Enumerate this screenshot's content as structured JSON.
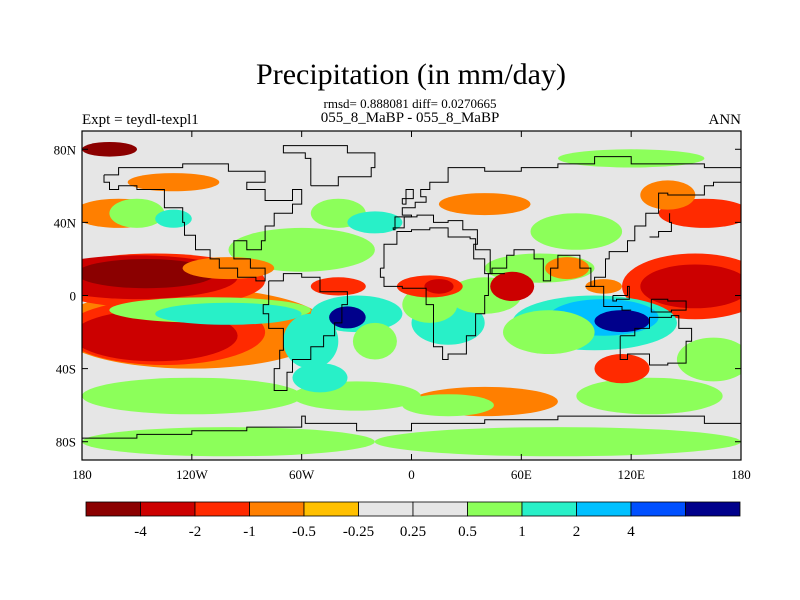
{
  "chart_data": {
    "type": "heatmap",
    "title": "Precipitation (in mm/day)",
    "stats_line": "rmsd= 0.888081 diff= 0.0270665",
    "subtitle": "055_8_MaBP - 055_8_MaBP",
    "left_label": "Expt = teydl-texpl1",
    "right_label": "ANN",
    "xlim": [
      -180,
      180
    ],
    "ylim": [
      -90,
      90
    ],
    "x_ticks": [
      {
        "value": -180,
        "label": "180"
      },
      {
        "value": -120,
        "label": "120W"
      },
      {
        "value": -60,
        "label": "60W"
      },
      {
        "value": 0,
        "label": "0"
      },
      {
        "value": 60,
        "label": "60E"
      },
      {
        "value": 120,
        "label": "120E"
      },
      {
        "value": 180,
        "label": "180"
      }
    ],
    "y_ticks": [
      {
        "value": 80,
        "label": "80N"
      },
      {
        "value": 40,
        "label": "40N"
      },
      {
        "value": 0,
        "label": "0"
      },
      {
        "value": -40,
        "label": "40S"
      },
      {
        "value": -80,
        "label": "80S"
      }
    ],
    "colorbar": {
      "colors": [
        "#8b0000",
        "#cc0000",
        "#ff2a00",
        "#ff7f00",
        "#ffc000",
        "#e6e6e6",
        "#e6e6e6",
        "#8cff5a",
        "#28f0c8",
        "#00c0ff",
        "#0050ff",
        "#00008b"
      ],
      "labels": [
        "-4",
        "-2",
        "-1",
        "-0.5",
        "-0.25",
        "0.25",
        "0.5",
        "1",
        "2",
        "4"
      ]
    },
    "anomaly_regions": [
      {
        "lon": -145,
        "lat": 12,
        "rx": 38,
        "ry": 8,
        "level": -4
      },
      {
        "lon": -150,
        "lat": 10,
        "rx": 55,
        "ry": 12,
        "level": -2
      },
      {
        "lon": -140,
        "lat": 8,
        "rx": 60,
        "ry": 15,
        "level": -1
      },
      {
        "lon": -100,
        "lat": 15,
        "rx": 25,
        "ry": 6,
        "level": -0.5
      },
      {
        "lon": -140,
        "lat": -22,
        "rx": 45,
        "ry": 14,
        "level": -2
      },
      {
        "lon": -135,
        "lat": -20,
        "rx": 55,
        "ry": 18,
        "level": -1
      },
      {
        "lon": -120,
        "lat": -18,
        "rx": 75,
        "ry": 22,
        "level": -0.5
      },
      {
        "lon": -160,
        "lat": 45,
        "rx": 25,
        "ry": 8,
        "level": -0.5
      },
      {
        "lon": -130,
        "lat": 62,
        "rx": 25,
        "ry": 5,
        "level": -0.5
      },
      {
        "lon": -165,
        "lat": 80,
        "rx": 15,
        "ry": 4,
        "level": -4
      },
      {
        "lon": -110,
        "lat": -8,
        "rx": 55,
        "ry": 7,
        "level": 0.5
      },
      {
        "lon": -100,
        "lat": -10,
        "rx": 40,
        "ry": 6,
        "level": 1
      },
      {
        "lon": -30,
        "lat": -10,
        "rx": 25,
        "ry": 10,
        "level": 1
      },
      {
        "lon": -35,
        "lat": -12,
        "rx": 10,
        "ry": 6,
        "level": 4
      },
      {
        "lon": -55,
        "lat": -25,
        "rx": 15,
        "ry": 15,
        "level": 1
      },
      {
        "lon": -20,
        "lat": -25,
        "rx": 12,
        "ry": 10,
        "level": 0.5
      },
      {
        "lon": -60,
        "lat": 25,
        "rx": 40,
        "ry": 12,
        "level": 0.5
      },
      {
        "lon": -40,
        "lat": 45,
        "rx": 15,
        "ry": 8,
        "level": 0.25
      },
      {
        "lon": -150,
        "lat": 45,
        "rx": 15,
        "ry": 8,
        "level": 0.5
      },
      {
        "lon": -130,
        "lat": 42,
        "rx": 10,
        "ry": 5,
        "level": 1
      },
      {
        "lon": -20,
        "lat": 40,
        "rx": 15,
        "ry": 6,
        "level": 1
      },
      {
        "lon": -40,
        "lat": 5,
        "rx": 15,
        "ry": 5,
        "level": -1
      },
      {
        "lon": 10,
        "lat": 5,
        "rx": 18,
        "ry": 6,
        "level": -1
      },
      {
        "lon": 15,
        "lat": 5,
        "rx": 8,
        "ry": 4,
        "level": -2
      },
      {
        "lon": 55,
        "lat": 5,
        "rx": 12,
        "ry": 8,
        "level": -2
      },
      {
        "lon": 40,
        "lat": 0,
        "rx": 20,
        "ry": 10,
        "level": 0.5
      },
      {
        "lon": 10,
        "lat": -5,
        "rx": 15,
        "ry": 10,
        "level": 0.5
      },
      {
        "lon": 20,
        "lat": -15,
        "rx": 20,
        "ry": 12,
        "level": 1
      },
      {
        "lon": 105,
        "lat": -12,
        "rx": 30,
        "ry": 10,
        "level": 2
      },
      {
        "lon": 115,
        "lat": -14,
        "rx": 15,
        "ry": 6,
        "level": 4
      },
      {
        "lon": 100,
        "lat": -15,
        "rx": 45,
        "ry": 15,
        "level": 1
      },
      {
        "lon": 75,
        "lat": -20,
        "rx": 25,
        "ry": 12,
        "level": 0.5
      },
      {
        "lon": 70,
        "lat": 15,
        "rx": 30,
        "ry": 8,
        "level": 0.5
      },
      {
        "lon": 85,
        "lat": 15,
        "rx": 12,
        "ry": 6,
        "level": -0.5
      },
      {
        "lon": 90,
        "lat": 35,
        "rx": 25,
        "ry": 10,
        "level": 0.5
      },
      {
        "lon": 105,
        "lat": 5,
        "rx": 10,
        "ry": 4,
        "level": -0.5
      },
      {
        "lon": 155,
        "lat": 5,
        "rx": 40,
        "ry": 18,
        "level": -1
      },
      {
        "lon": 155,
        "lat": 5,
        "rx": 30,
        "ry": 12,
        "level": -2
      },
      {
        "lon": 160,
        "lat": 45,
        "rx": 25,
        "ry": 8,
        "level": -1
      },
      {
        "lon": 40,
        "lat": 50,
        "rx": 25,
        "ry": 6,
        "level": -0.5
      },
      {
        "lon": 140,
        "lat": 55,
        "rx": 15,
        "ry": 8,
        "level": -0.5
      },
      {
        "lon": 165,
        "lat": -35,
        "rx": 20,
        "ry": 12,
        "level": 0.5
      },
      {
        "lon": 130,
        "lat": -55,
        "rx": 40,
        "ry": 10,
        "level": 0.5
      },
      {
        "lon": 40,
        "lat": -58,
        "rx": 40,
        "ry": 8,
        "level": -0.5
      },
      {
        "lon": 20,
        "lat": -60,
        "rx": 25,
        "ry": 6,
        "level": 0.5
      },
      {
        "lon": 115,
        "lat": -40,
        "rx": 15,
        "ry": 8,
        "level": -1
      },
      {
        "lon": -120,
        "lat": -55,
        "rx": 60,
        "ry": 10,
        "level": 0.5
      },
      {
        "lon": -30,
        "lat": -55,
        "rx": 35,
        "ry": 8,
        "level": 0.5
      },
      {
        "lon": -50,
        "lat": -45,
        "rx": 15,
        "ry": 8,
        "level": 1
      },
      {
        "lon": -100,
        "lat": -80,
        "rx": 80,
        "ry": 8,
        "level": 0.5
      },
      {
        "lon": 80,
        "lat": -80,
        "rx": 100,
        "ry": 8,
        "level": 0.5
      },
      {
        "lon": 120,
        "lat": 75,
        "rx": 40,
        "ry": 5,
        "level": 0.5
      }
    ]
  }
}
